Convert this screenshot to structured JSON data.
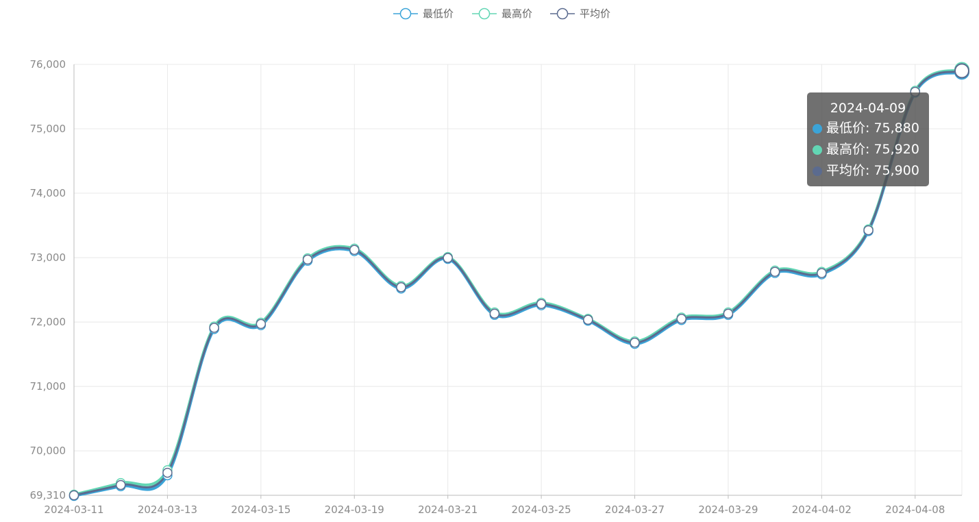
{
  "chart_data": {
    "type": "line",
    "categories": [
      "2024-03-11",
      "2024-03-12",
      "2024-03-13",
      "2024-03-14",
      "2024-03-15",
      "2024-03-18",
      "2024-03-19",
      "2024-03-20",
      "2024-03-21",
      "2024-03-22",
      "2024-03-25",
      "2024-03-26",
      "2024-03-27",
      "2024-03-28",
      "2024-03-29",
      "2024-04-01",
      "2024-04-02",
      "2024-04-03",
      "2024-04-08",
      "2024-04-09"
    ],
    "x_tick_labels": [
      "2024-03-11",
      "2024-03-13",
      "2024-03-15",
      "2024-03-19",
      "2024-03-21",
      "2024-03-25",
      "2024-03-27",
      "2024-03-29",
      "2024-04-02",
      "2024-04-08"
    ],
    "series": [
      {
        "name": "最低价",
        "color": "#3ba4d8",
        "values": [
          69300,
          69450,
          69620,
          71890,
          71950,
          72950,
          73100,
          72520,
          72980,
          72110,
          72260,
          72020,
          71660,
          72030,
          72110,
          72760,
          72740,
          73410,
          75560,
          75880
        ]
      },
      {
        "name": "最高价",
        "color": "#62d6b4",
        "values": [
          69320,
          69500,
          69700,
          71930,
          71990,
          72990,
          73140,
          72560,
          73010,
          72150,
          72300,
          72050,
          71700,
          72070,
          72150,
          72800,
          72780,
          73440,
          75590,
          75920
        ]
      },
      {
        "name": "平均价",
        "color": "#5b6b8f",
        "values": [
          69310,
          69470,
          69660,
          71910,
          71970,
          72970,
          73120,
          72540,
          72995,
          72130,
          72280,
          72035,
          71680,
          72050,
          72130,
          72780,
          72760,
          73425,
          75575,
          75900
        ]
      }
    ],
    "ylim": [
      69310,
      76000
    ],
    "y_ticks": [
      69310,
      70000,
      71000,
      72000,
      73000,
      74000,
      75000,
      76000
    ],
    "y_tick_labels": [
      "69,310",
      "70,000",
      "71,000",
      "72,000",
      "73,000",
      "74,000",
      "75,000",
      "76,000"
    ],
    "grid": true,
    "legend_position": "top-center",
    "tooltip": {
      "title": "2024-04-09",
      "rows": [
        {
          "text": "最低价: 75,880",
          "color": "#3ba4d8"
        },
        {
          "text": "最高价: 75,920",
          "color": "#62d6b4"
        },
        {
          "text": "平均价: 75,900",
          "color": "#5b6b8f"
        }
      ]
    }
  }
}
